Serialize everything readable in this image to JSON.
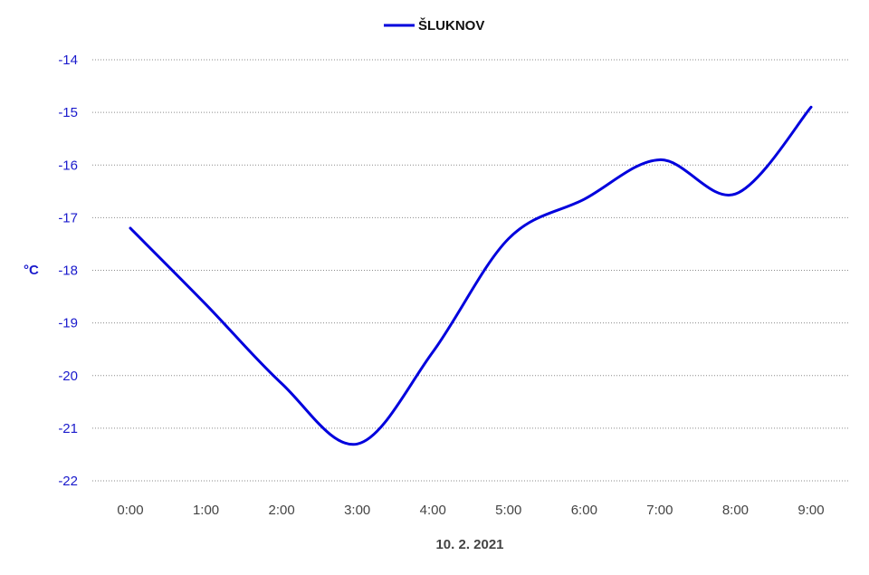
{
  "chart_data": {
    "type": "line",
    "x": [
      "0:00",
      "1:00",
      "2:00",
      "3:00",
      "4:00",
      "5:00",
      "6:00",
      "7:00",
      "8:00",
      "9:00"
    ],
    "series": [
      {
        "name": "ŠLUKNOV",
        "color": "#0000dd",
        "values": [
          -17.2,
          -18.65,
          -20.15,
          -21.3,
          -19.55,
          -17.4,
          -16.65,
          -15.9,
          -16.55,
          -14.9
        ]
      }
    ],
    "yticks": [
      -14,
      -15,
      -16,
      -17,
      -18,
      -19,
      -20,
      -21,
      -22
    ],
    "ylim": [
      -22,
      -14
    ],
    "ylabel": "°C",
    "xlabel": "10. 2. 2021",
    "grid": true,
    "legend_position": "top-center",
    "smooth": true
  }
}
